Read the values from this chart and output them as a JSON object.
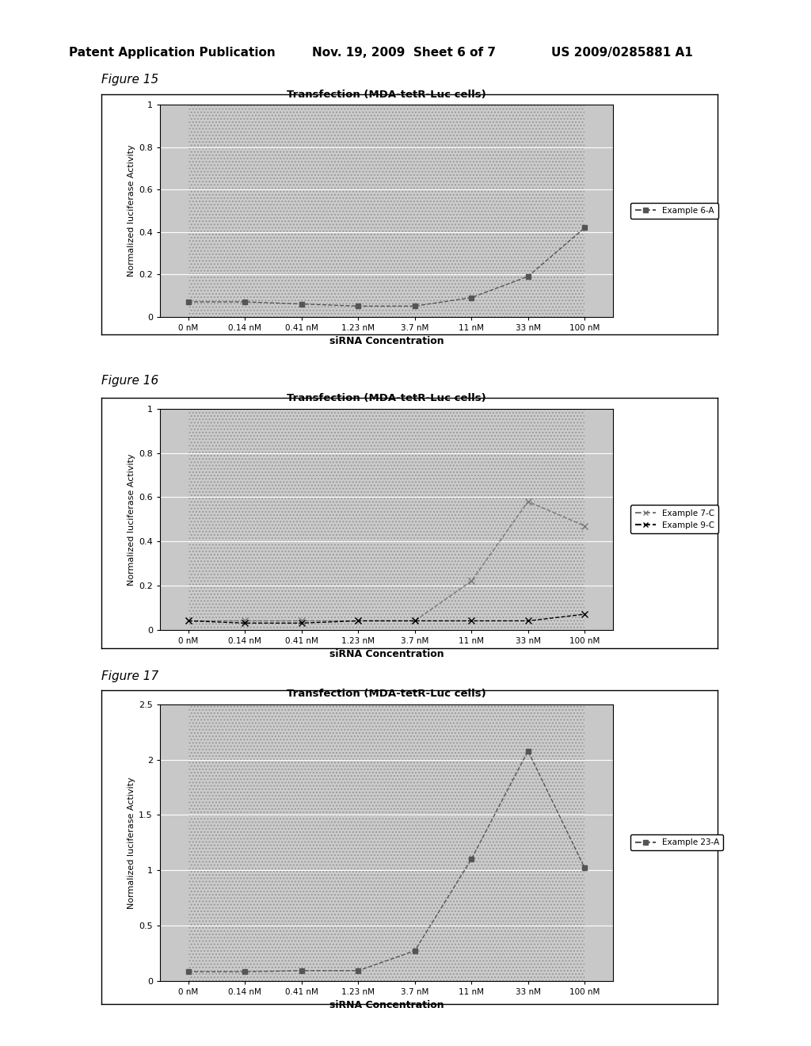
{
  "header_left": "Patent Application Publication",
  "header_mid": "Nov. 19, 2009  Sheet 6 of 7",
  "header_right": "US 2009/0285881 A1",
  "x_labels": [
    "0 nM",
    "0.14 nM",
    "0.41 nM",
    "1.23 nM",
    "3.7 nM",
    "11 nM",
    "33 nM",
    "100 nM"
  ],
  "x_vals": [
    0,
    1,
    2,
    3,
    4,
    5,
    6,
    7
  ],
  "xlabel": "siRNA Concentration",
  "ylabel": "Normalized luciferase Activity",
  "chart_title": "Transfection (MDA-tetR-Luc cells)",
  "fig15": {
    "label": "Figure 15",
    "series": [
      {
        "name": "Example 6-A",
        "values": [
          0.07,
          0.07,
          0.06,
          0.05,
          0.05,
          0.09,
          0.19,
          0.42
        ],
        "color": "#555555",
        "linestyle": "--",
        "marker": "s",
        "markersize": 5
      }
    ],
    "ylim": [
      0,
      1.0
    ],
    "yticks": [
      0,
      0.2,
      0.4,
      0.6,
      0.8,
      1
    ]
  },
  "fig16": {
    "label": "Figure 16",
    "series": [
      {
        "name": "Example 7-C",
        "values": [
          0.04,
          0.04,
          0.04,
          0.04,
          0.04,
          0.22,
          0.58,
          0.47
        ],
        "color": "#777777",
        "linestyle": "--",
        "marker": "x",
        "markersize": 6
      },
      {
        "name": "Example 9-C",
        "values": [
          0.04,
          0.03,
          0.03,
          0.04,
          0.04,
          0.04,
          0.04,
          0.07
        ],
        "color": "#000000",
        "linestyle": "--",
        "marker": "x",
        "markersize": 6
      }
    ],
    "ylim": [
      0,
      1.0
    ],
    "yticks": [
      0,
      0.2,
      0.4,
      0.6,
      0.8,
      1
    ]
  },
  "fig17": {
    "label": "Figure 17",
    "series": [
      {
        "name": "Example 23-A",
        "values": [
          0.08,
          0.08,
          0.09,
          0.09,
          0.27,
          1.1,
          2.08,
          1.02
        ],
        "color": "#555555",
        "linestyle": "--",
        "marker": "s",
        "markersize": 5
      }
    ],
    "ylim": [
      0,
      2.5
    ],
    "yticks": [
      0,
      0.5,
      1,
      1.5,
      2,
      2.5
    ]
  },
  "hatch_pattern": "....",
  "plot_bg": "#cccccc",
  "outer_box_color": "#ffffff",
  "grid_color": "#888888"
}
